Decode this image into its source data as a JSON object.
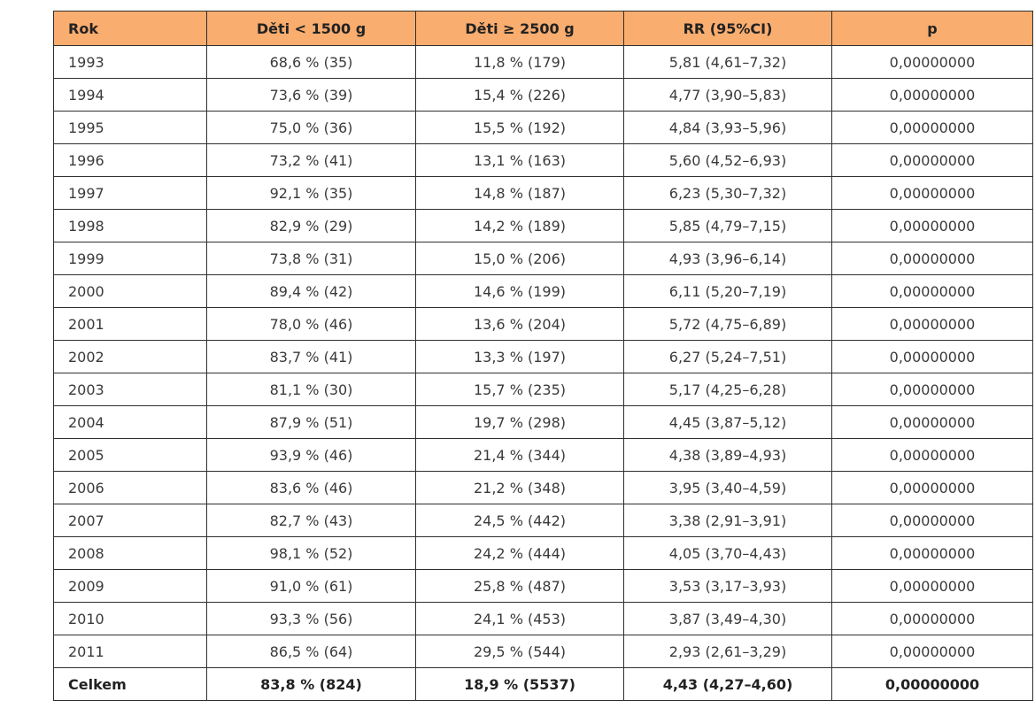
{
  "table": {
    "headers": [
      "Rok",
      "Děti < 1500 g",
      "Děti ≥ 2500 g",
      "RR (95%CI)",
      "p"
    ],
    "rows": [
      [
        "1993",
        "68,6 % (35)",
        "11,8 % (179)",
        "5,81 (4,61–7,32)",
        "0,00000000"
      ],
      [
        "1994",
        "73,6 % (39)",
        "15,4 % (226)",
        "4,77 (3,90–5,83)",
        "0,00000000"
      ],
      [
        "1995",
        "75,0 % (36)",
        "15,5 % (192)",
        "4,84 (3,93–5,96)",
        "0,00000000"
      ],
      [
        "1996",
        "73,2 % (41)",
        "13,1 % (163)",
        "5,60 (4,52–6,93)",
        "0,00000000"
      ],
      [
        "1997",
        "92,1 % (35)",
        "14,8 % (187)",
        "6,23 (5,30–7,32)",
        "0,00000000"
      ],
      [
        "1998",
        "82,9 % (29)",
        "14,2 % (189)",
        "5,85 (4,79–7,15)",
        "0,00000000"
      ],
      [
        "1999",
        "73,8 % (31)",
        "15,0 % (206)",
        "4,93 (3,96–6,14)",
        "0,00000000"
      ],
      [
        "2000",
        "89,4 % (42)",
        "14,6 % (199)",
        "6,11  (5,20–7,19)",
        "0,00000000"
      ],
      [
        "2001",
        "78,0 % (46)",
        "13,6 % (204)",
        "5,72 (4,75–6,89)",
        "0,00000000"
      ],
      [
        "2002",
        "83,7 % (41)",
        "13,3 % (197)",
        "6,27 (5,24–7,51)",
        "0,00000000"
      ],
      [
        "2003",
        "81,1 % (30)",
        "15,7 % (235)",
        "5,17 (4,25–6,28)",
        "0,00000000"
      ],
      [
        "2004",
        "87,9 % (51)",
        "19,7 % (298)",
        "4,45 (3,87–5,12)",
        "0,00000000"
      ],
      [
        "2005",
        "93,9 % (46)",
        "21,4 % (344)",
        "4,38 (3,89–4,93)",
        "0,00000000"
      ],
      [
        "2006",
        "83,6 % (46)",
        "21,2 % (348)",
        "3,95 (3,40–4,59)",
        "0,00000000"
      ],
      [
        "2007",
        "82,7 % (43)",
        "24,5 % (442)",
        "3,38 (2,91–3,91)",
        "0,00000000"
      ],
      [
        "2008",
        "98,1 % (52)",
        "24,2 % (444)",
        "4,05 (3,70–4,43)",
        "0,00000000"
      ],
      [
        "2009",
        "91,0 % (61)",
        "25,8 % (487)",
        "3,53 (3,17–3,93)",
        "0,00000000"
      ],
      [
        "2010",
        "93,3 % (56)",
        "24,1 % (453)",
        "3,87 (3,49–4,30)",
        "0,00000000"
      ],
      [
        "2011",
        "86,5 % (64)",
        "29,5 % (544)",
        "2,93 (2,61–3,29)",
        "0,00000000"
      ]
    ],
    "total": [
      "Celkem",
      "83,8 % (824)",
      "18,9 % (5537)",
      "4,43 (4,27–4,60)",
      "0,00000000"
    ]
  },
  "colors": {
    "header_background": "#f9ad6f",
    "border": "#2f2f2f",
    "text": "#3a3a3a"
  }
}
